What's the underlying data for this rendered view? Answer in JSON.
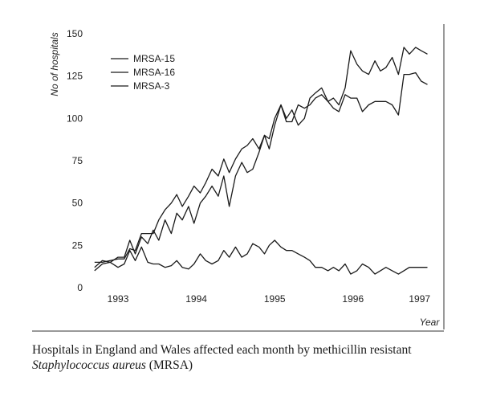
{
  "chart_data": {
    "type": "line",
    "title": "",
    "ylabel": "No of hospitals",
    "xlabel": "Year",
    "ylim": [
      0,
      150
    ],
    "xlim": [
      1992.6,
      1997.15
    ],
    "yticks": [
      0,
      25,
      50,
      75,
      100,
      125,
      150
    ],
    "xticks": [
      {
        "label": "1993",
        "value": 1993.0
      },
      {
        "label": "1994",
        "value": 1994.0
      },
      {
        "label": "1995",
        "value": 1995.0
      },
      {
        "label": "1996",
        "value": 1996.0
      },
      {
        "label": "1997",
        "value": 1996.85
      }
    ],
    "legend_position": "top-left",
    "grid": false,
    "series": [
      {
        "name": "MRSA-15",
        "points": [
          [
            1992.7,
            12
          ],
          [
            1992.8,
            16
          ],
          [
            1992.9,
            15
          ],
          [
            1993.0,
            18
          ],
          [
            1993.08,
            18
          ],
          [
            1993.15,
            28
          ],
          [
            1993.22,
            20
          ],
          [
            1993.3,
            30
          ],
          [
            1993.38,
            26
          ],
          [
            1993.45,
            34
          ],
          [
            1993.52,
            28
          ],
          [
            1993.6,
            40
          ],
          [
            1993.68,
            32
          ],
          [
            1993.75,
            44
          ],
          [
            1993.82,
            40
          ],
          [
            1993.9,
            48
          ],
          [
            1993.97,
            38
          ],
          [
            1994.05,
            50
          ],
          [
            1994.12,
            54
          ],
          [
            1994.2,
            60
          ],
          [
            1994.28,
            54
          ],
          [
            1994.35,
            66
          ],
          [
            1994.42,
            48
          ],
          [
            1994.5,
            66
          ],
          [
            1994.58,
            74
          ],
          [
            1994.65,
            68
          ],
          [
            1994.72,
            70
          ],
          [
            1994.8,
            80
          ],
          [
            1994.87,
            90
          ],
          [
            1994.93,
            82
          ],
          [
            1995.0,
            96
          ],
          [
            1995.08,
            108
          ],
          [
            1995.15,
            100
          ],
          [
            1995.22,
            105
          ],
          [
            1995.3,
            96
          ],
          [
            1995.38,
            100
          ],
          [
            1995.45,
            112
          ],
          [
            1995.52,
            115
          ],
          [
            1995.6,
            118
          ],
          [
            1995.68,
            110
          ],
          [
            1995.75,
            112
          ],
          [
            1995.82,
            108
          ],
          [
            1995.9,
            118
          ],
          [
            1995.97,
            140
          ],
          [
            1996.05,
            132
          ],
          [
            1996.12,
            128
          ],
          [
            1996.2,
            126
          ],
          [
            1996.28,
            134
          ],
          [
            1996.35,
            128
          ],
          [
            1996.42,
            130
          ],
          [
            1996.5,
            136
          ],
          [
            1996.58,
            126
          ],
          [
            1996.65,
            142
          ],
          [
            1996.72,
            138
          ],
          [
            1996.8,
            142
          ],
          [
            1996.87,
            140
          ],
          [
            1996.95,
            138
          ]
        ]
      },
      {
        "name": "MRSA-16",
        "points": [
          [
            1992.7,
            15
          ],
          [
            1992.8,
            15
          ],
          [
            1992.9,
            16
          ],
          [
            1993.0,
            17
          ],
          [
            1993.08,
            17
          ],
          [
            1993.15,
            23
          ],
          [
            1993.22,
            22
          ],
          [
            1993.3,
            32
          ],
          [
            1993.38,
            32
          ],
          [
            1993.45,
            32
          ],
          [
            1993.52,
            40
          ],
          [
            1993.6,
            46
          ],
          [
            1993.68,
            50
          ],
          [
            1993.75,
            55
          ],
          [
            1993.82,
            48
          ],
          [
            1993.9,
            54
          ],
          [
            1993.97,
            60
          ],
          [
            1994.05,
            56
          ],
          [
            1994.12,
            62
          ],
          [
            1994.2,
            70
          ],
          [
            1994.28,
            66
          ],
          [
            1994.35,
            76
          ],
          [
            1994.42,
            68
          ],
          [
            1994.5,
            76
          ],
          [
            1994.58,
            82
          ],
          [
            1994.65,
            84
          ],
          [
            1994.72,
            88
          ],
          [
            1994.8,
            82
          ],
          [
            1994.87,
            90
          ],
          [
            1994.93,
            88
          ],
          [
            1995.0,
            100
          ],
          [
            1995.08,
            108
          ],
          [
            1995.15,
            98
          ],
          [
            1995.22,
            98
          ],
          [
            1995.3,
            108
          ],
          [
            1995.38,
            106
          ],
          [
            1995.45,
            108
          ],
          [
            1995.52,
            112
          ],
          [
            1995.6,
            114
          ],
          [
            1995.68,
            110
          ],
          [
            1995.75,
            106
          ],
          [
            1995.82,
            104
          ],
          [
            1995.9,
            114
          ],
          [
            1995.97,
            112
          ],
          [
            1996.05,
            112
          ],
          [
            1996.12,
            104
          ],
          [
            1996.2,
            108
          ],
          [
            1996.28,
            110
          ],
          [
            1996.35,
            110
          ],
          [
            1996.42,
            110
          ],
          [
            1996.5,
            108
          ],
          [
            1996.58,
            102
          ],
          [
            1996.65,
            126
          ],
          [
            1996.72,
            126
          ],
          [
            1996.8,
            127
          ],
          [
            1996.87,
            122
          ],
          [
            1996.95,
            120
          ]
        ]
      },
      {
        "name": "MRSA-3",
        "points": [
          [
            1992.7,
            10
          ],
          [
            1992.8,
            14
          ],
          [
            1992.9,
            15
          ],
          [
            1993.0,
            12
          ],
          [
            1993.08,
            14
          ],
          [
            1993.15,
            22
          ],
          [
            1993.22,
            16
          ],
          [
            1993.3,
            24
          ],
          [
            1993.38,
            15
          ],
          [
            1993.45,
            14
          ],
          [
            1993.52,
            14
          ],
          [
            1993.6,
            12
          ],
          [
            1993.68,
            13
          ],
          [
            1993.75,
            16
          ],
          [
            1993.82,
            12
          ],
          [
            1993.9,
            11
          ],
          [
            1993.97,
            14
          ],
          [
            1994.05,
            20
          ],
          [
            1994.12,
            16
          ],
          [
            1994.2,
            14
          ],
          [
            1994.28,
            16
          ],
          [
            1994.35,
            22
          ],
          [
            1994.42,
            18
          ],
          [
            1994.5,
            24
          ],
          [
            1994.58,
            18
          ],
          [
            1994.65,
            20
          ],
          [
            1994.72,
            26
          ],
          [
            1994.8,
            24
          ],
          [
            1994.87,
            20
          ],
          [
            1994.93,
            25
          ],
          [
            1995.0,
            28
          ],
          [
            1995.08,
            24
          ],
          [
            1995.15,
            22
          ],
          [
            1995.22,
            22
          ],
          [
            1995.3,
            20
          ],
          [
            1995.38,
            18
          ],
          [
            1995.45,
            16
          ],
          [
            1995.52,
            12
          ],
          [
            1995.6,
            12
          ],
          [
            1995.68,
            10
          ],
          [
            1995.75,
            12
          ],
          [
            1995.82,
            10
          ],
          [
            1995.9,
            14
          ],
          [
            1995.97,
            8
          ],
          [
            1996.05,
            10
          ],
          [
            1996.12,
            14
          ],
          [
            1996.2,
            12
          ],
          [
            1996.28,
            8
          ],
          [
            1996.35,
            10
          ],
          [
            1996.42,
            12
          ],
          [
            1996.5,
            10
          ],
          [
            1996.58,
            8
          ],
          [
            1996.65,
            10
          ],
          [
            1996.72,
            12
          ],
          [
            1996.8,
            12
          ],
          [
            1996.87,
            12
          ],
          [
            1996.95,
            12
          ]
        ]
      }
    ],
    "colors": {
      "line": "#1a1a1a",
      "axis": "#222222",
      "background": "#ffffff"
    }
  },
  "caption": {
    "part1": "Hospitals in England and Wales affected each month by methicillin resistant ",
    "species": "Staphylococcus aureus",
    "part2": " (MRSA)"
  }
}
